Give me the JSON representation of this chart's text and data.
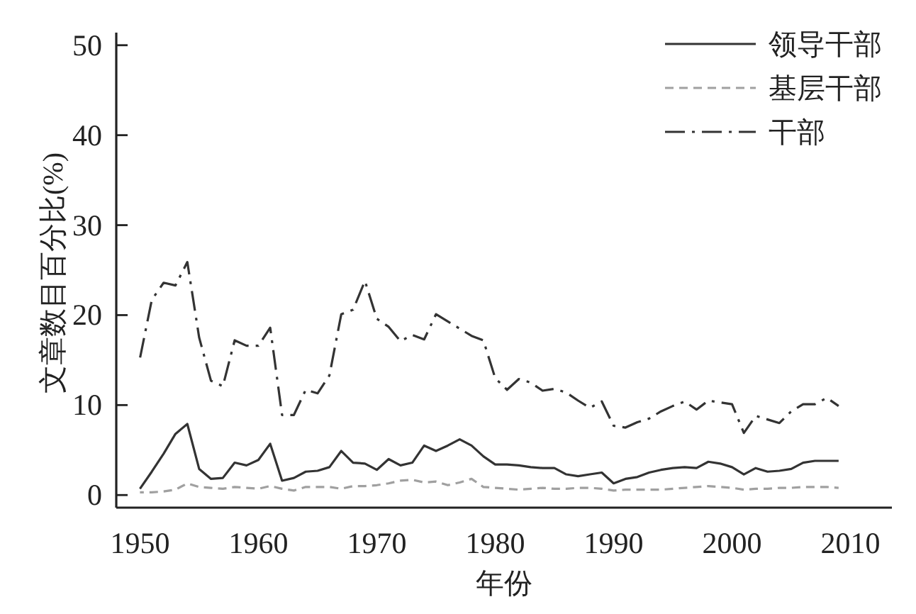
{
  "chart_data": {
    "type": "line",
    "xlabel": "年份",
    "ylabel": "文章数目百分比(%)",
    "x": [
      1950,
      1951,
      1952,
      1953,
      1954,
      1955,
      1956,
      1957,
      1958,
      1959,
      1960,
      1961,
      1962,
      1963,
      1964,
      1965,
      1966,
      1967,
      1968,
      1969,
      1970,
      1971,
      1972,
      1973,
      1974,
      1975,
      1976,
      1977,
      1978,
      1979,
      1980,
      1981,
      1982,
      1983,
      1984,
      1985,
      1986,
      1987,
      1988,
      1989,
      1990,
      1991,
      1992,
      1993,
      1994,
      1995,
      1996,
      1997,
      1998,
      1999,
      2000,
      2001,
      2002,
      2003,
      2004,
      2005,
      2006,
      2007,
      2008,
      2009
    ],
    "series": [
      {
        "name": "领导干部",
        "color": "#333333",
        "line_style": "solid",
        "values": [
          0.7,
          2.6,
          4.6,
          6.8,
          7.9,
          2.9,
          1.8,
          1.9,
          3.6,
          3.3,
          3.9,
          5.7,
          1.6,
          1.9,
          2.6,
          2.7,
          3.1,
          4.9,
          3.6,
          3.5,
          2.8,
          4.0,
          3.3,
          3.6,
          5.5,
          4.9,
          5.5,
          6.2,
          5.5,
          4.3,
          3.4,
          3.4,
          3.3,
          3.1,
          3.0,
          3.0,
          2.3,
          2.1,
          2.3,
          2.5,
          1.3,
          1.8,
          2.0,
          2.5,
          2.8,
          3.0,
          3.1,
          3.0,
          3.7,
          3.5,
          3.1,
          2.3,
          3.0,
          2.6,
          2.7,
          2.9,
          3.6,
          3.8,
          3.8,
          3.8
        ]
      },
      {
        "name": "基层干部",
        "color": "#a0a0a0",
        "line_style": "dashed",
        "values": [
          0.3,
          0.3,
          0.4,
          0.6,
          1.3,
          0.9,
          0.8,
          0.7,
          0.9,
          0.8,
          0.7,
          1.0,
          0.7,
          0.5,
          0.9,
          0.9,
          0.9,
          0.7,
          1.0,
          1.0,
          1.1,
          1.3,
          1.6,
          1.7,
          1.4,
          1.5,
          1.1,
          1.4,
          1.8,
          0.9,
          0.8,
          0.7,
          0.6,
          0.7,
          0.8,
          0.7,
          0.7,
          0.8,
          0.8,
          0.7,
          0.5,
          0.6,
          0.6,
          0.6,
          0.6,
          0.7,
          0.8,
          0.9,
          1.0,
          0.9,
          0.8,
          0.6,
          0.7,
          0.7,
          0.8,
          0.8,
          0.9,
          0.9,
          0.9,
          0.8
        ]
      },
      {
        "name": "干部",
        "color": "#333333",
        "line_style": "dashdot",
        "values": [
          15.2,
          21.7,
          23.6,
          23.3,
          25.9,
          17.5,
          12.7,
          12.1,
          17.2,
          16.6,
          16.6,
          18.6,
          8.9,
          8.9,
          11.7,
          11.3,
          13.3,
          20.1,
          20.6,
          23.8,
          19.6,
          18.7,
          17.1,
          17.8,
          17.3,
          20.1,
          19.3,
          18.5,
          17.7,
          17.2,
          13.0,
          11.7,
          12.9,
          12.5,
          11.6,
          11.8,
          11.4,
          10.5,
          9.7,
          10.4,
          7.7,
          7.5,
          8.1,
          8.5,
          9.3,
          9.9,
          10.4,
          9.5,
          10.5,
          10.3,
          10.1,
          6.9,
          8.8,
          8.4,
          8.0,
          9.3,
          10.1,
          10.1,
          10.8,
          9.9
        ]
      }
    ],
    "xlim": [
      1948,
      2013.5
    ],
    "ylim": [
      -1.4,
      51.4
    ],
    "xticks": [
      1950,
      1960,
      1970,
      1980,
      1990,
      2000,
      2010
    ],
    "yticks": [
      0,
      10,
      20,
      30,
      40,
      50
    ],
    "legend": "top right"
  }
}
